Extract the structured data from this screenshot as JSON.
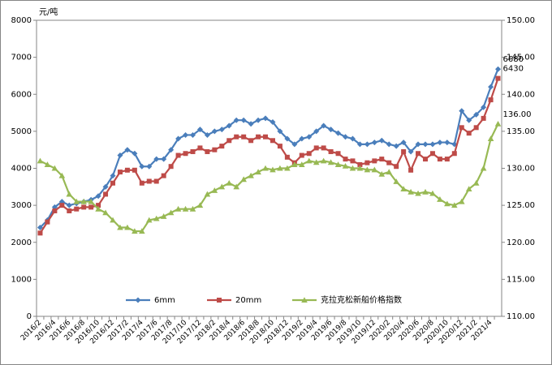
{
  "chart_data": {
    "type": "line",
    "y_label": "元/吨",
    "categories": [
      "2016/2",
      null,
      "2016/4",
      null,
      "2016/6",
      null,
      "2016/8",
      null,
      "2016/10",
      null,
      "2016/12",
      null,
      "2017/2",
      null,
      "2017/4",
      null,
      "2017/6",
      null,
      "2017/8",
      null,
      "2017/10",
      null,
      "2017/12",
      null,
      "2018/2",
      null,
      "2018/4",
      null,
      "2018/6",
      null,
      "2018/8",
      null,
      "2018/10",
      null,
      "2018/12",
      null,
      "2019/2",
      null,
      "2019/4",
      null,
      "2019/6",
      null,
      "2019/8",
      null,
      "2019/10",
      null,
      "2019/12",
      null,
      "2020/2",
      null,
      "2020/4",
      null,
      "2020/6",
      null,
      "2020/8",
      null,
      "2020/10",
      null,
      "2020/12",
      null,
      "2021/2",
      null,
      "2021/4",
      null
    ],
    "series": [
      {
        "name": "6mm",
        "color": "#4a7ebb",
        "marker": "diamond",
        "values": [
          2400,
          2600,
          2950,
          3100,
          3000,
          3050,
          3100,
          3150,
          3250,
          3500,
          3800,
          4350,
          4500,
          4400,
          4050,
          4050,
          4250,
          4250,
          4500,
          4800,
          4900,
          4900,
          5050,
          4900,
          5000,
          5050,
          5150,
          5300,
          5300,
          5200,
          5300,
          5350,
          5250,
          5000,
          4800,
          4650,
          4800,
          4850,
          5000,
          5150,
          5050,
          4950,
          4850,
          4800,
          4650,
          4650,
          4700,
          4750,
          4650,
          4600,
          4700,
          4450,
          4650,
          4650,
          4650,
          4700,
          4700,
          4650,
          5550,
          5300,
          5450,
          5650,
          6200,
          6680
        ],
        "value_labels": [
          null,
          null,
          null,
          null,
          null,
          null,
          null,
          null,
          null,
          null,
          null,
          null,
          null,
          null,
          null,
          null,
          null,
          null,
          null,
          null,
          null,
          null,
          null,
          null,
          null,
          null,
          null,
          null,
          null,
          null,
          null,
          null,
          null,
          null,
          null,
          null,
          null,
          null,
          null,
          null,
          null,
          null,
          null,
          null,
          null,
          null,
          null,
          null,
          null,
          null,
          null,
          null,
          null,
          null,
          null,
          null,
          null,
          null,
          null,
          null,
          null,
          null,
          null,
          "6680"
        ]
      },
      {
        "name": "20mm",
        "color": "#be4b48",
        "marker": "square",
        "values": [
          2250,
          2550,
          2850,
          3000,
          2850,
          2900,
          2950,
          2950,
          3000,
          3300,
          3600,
          3900,
          3950,
          3950,
          3600,
          3650,
          3650,
          3800,
          4050,
          4350,
          4400,
          4450,
          4550,
          4450,
          4500,
          4600,
          4750,
          4850,
          4850,
          4750,
          4850,
          4850,
          4750,
          4600,
          4300,
          4150,
          4350,
          4400,
          4550,
          4550,
          4450,
          4400,
          4250,
          4200,
          4100,
          4150,
          4200,
          4250,
          4150,
          4050,
          4450,
          3950,
          4400,
          4250,
          4400,
          4250,
          4250,
          4400,
          5100,
          4950,
          5100,
          5350,
          5850,
          6430
        ],
        "value_labels": [
          null,
          null,
          null,
          null,
          null,
          null,
          null,
          null,
          null,
          null,
          null,
          null,
          null,
          null,
          null,
          null,
          null,
          null,
          null,
          null,
          null,
          null,
          null,
          null,
          null,
          null,
          null,
          null,
          null,
          null,
          null,
          null,
          null,
          null,
          null,
          null,
          null,
          null,
          null,
          null,
          null,
          null,
          null,
          null,
          null,
          null,
          null,
          null,
          null,
          null,
          null,
          null,
          null,
          null,
          null,
          null,
          null,
          null,
          null,
          null,
          null,
          null,
          null,
          "6430"
        ]
      },
      {
        "name": "克拉克松新船价格指数",
        "color": "#98b954",
        "marker": "triangle",
        "axis": "y2",
        "values": [
          131,
          130.5,
          130,
          129,
          126.5,
          125.5,
          125.5,
          125.5,
          124.5,
          124,
          123,
          122,
          122,
          121.5,
          121.5,
          123,
          123.2,
          123.5,
          124,
          124.5,
          124.5,
          124.5,
          125,
          126.5,
          127,
          127.5,
          128,
          127.5,
          128.5,
          129,
          129.5,
          130,
          129.8,
          130,
          130,
          130.5,
          130.5,
          131,
          130.8,
          131,
          130.8,
          130.5,
          130.3,
          130,
          130,
          129.8,
          129.8,
          129.2,
          129.5,
          128.2,
          127.2,
          126.8,
          126.6,
          126.8,
          126.6,
          125.8,
          125.2,
          125,
          125.5,
          127.2,
          128,
          130,
          134,
          136
        ],
        "value_labels": [
          null,
          null,
          null,
          null,
          null,
          null,
          null,
          null,
          null,
          null,
          null,
          null,
          null,
          null,
          null,
          null,
          null,
          null,
          null,
          null,
          null,
          null,
          null,
          null,
          null,
          null,
          null,
          null,
          null,
          null,
          null,
          null,
          null,
          null,
          null,
          null,
          null,
          null,
          null,
          null,
          null,
          null,
          null,
          null,
          null,
          null,
          null,
          null,
          null,
          null,
          null,
          null,
          null,
          null,
          null,
          null,
          null,
          null,
          null,
          null,
          null,
          null,
          null,
          "136.00"
        ]
      }
    ],
    "ylim": [
      0,
      8000
    ],
    "yticks": [
      0,
      1000,
      2000,
      3000,
      4000,
      5000,
      6000,
      7000,
      8000
    ],
    "y2lim": [
      110,
      150
    ],
    "y2ticks": [
      {
        "value": 110,
        "label": "110.00"
      },
      {
        "value": 115,
        "label": "115.00"
      },
      {
        "value": 120,
        "label": "120.00"
      },
      {
        "value": 125,
        "label": "125.00"
      },
      {
        "value": 130,
        "label": "130.00"
      },
      {
        "value": 135,
        "label": "135.00"
      },
      {
        "value": 140,
        "label": "140.00"
      },
      {
        "value": 145,
        "label": "145.00"
      },
      {
        "value": 150,
        "label": "150.00"
      }
    ],
    "grid": false,
    "legend": "bottom"
  }
}
